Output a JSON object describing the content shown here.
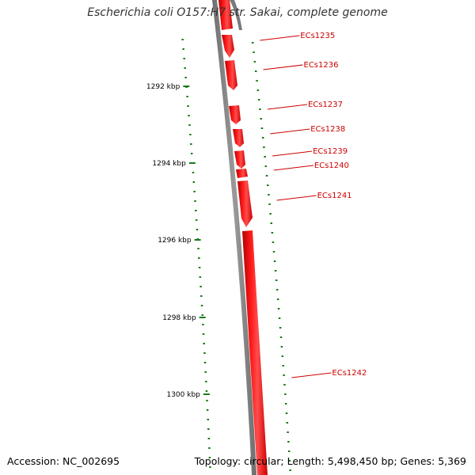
{
  "title": "Escherichia coli O157:H7 str. Sakai, complete genome",
  "accession": "Accession: NC_002695",
  "topology": "Topology: circular; Length: 5,498,450 bp; Genes: 5,369",
  "colors": {
    "backbone": "#808080",
    "gene": "#ff0000",
    "gene_dark": "#cc0000",
    "tick": "#1a7a1a",
    "label": "#cc0000"
  },
  "ruler": [
    {
      "label": "1292 kbp"
    },
    {
      "label": "1294 kbp"
    },
    {
      "label": "1296 kbp"
    },
    {
      "label": "1298 kbp"
    },
    {
      "label": "1300 kbp"
    }
  ],
  "genes": [
    {
      "name": "ECs1235"
    },
    {
      "name": "ECs1236"
    },
    {
      "name": "ECs1237"
    },
    {
      "name": "ECs1238"
    },
    {
      "name": "ECs1239"
    },
    {
      "name": "ECs1240"
    },
    {
      "name": "ECs1241"
    },
    {
      "name": "ECs1242"
    }
  ]
}
